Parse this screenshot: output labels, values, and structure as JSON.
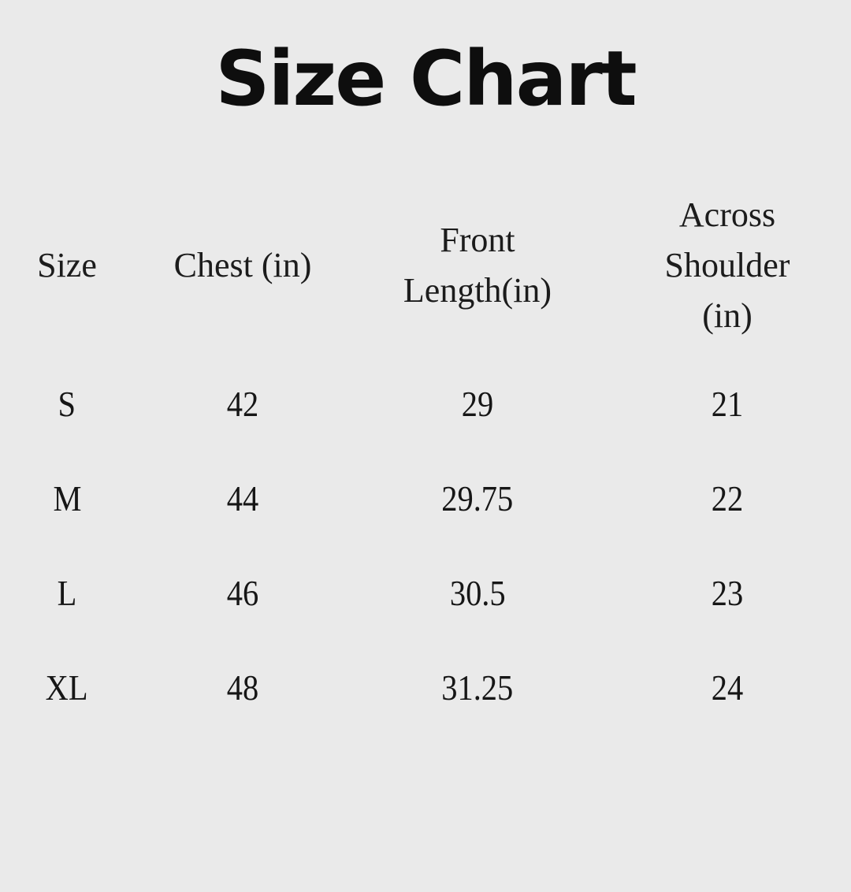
{
  "colors": {
    "background": "#EAEAEA",
    "title_text": "#0E0E0E",
    "table_text": "#1C1C1C"
  },
  "title": "Size Chart",
  "chart_data": {
    "type": "table",
    "title": "Size Chart",
    "columns": [
      "Size",
      "Chest (in)",
      "Front Length(in)",
      "Across Shoulder (in)"
    ],
    "rows": [
      [
        "S",
        "42",
        "29",
        "21"
      ],
      [
        "M",
        "44",
        "29.75",
        "22"
      ],
      [
        "L",
        "46",
        "30.5",
        "23"
      ],
      [
        "XL",
        "48",
        "31.25",
        "24"
      ]
    ],
    "layout": {
      "grid": "off",
      "borders": "none",
      "alignment": "center"
    }
  }
}
